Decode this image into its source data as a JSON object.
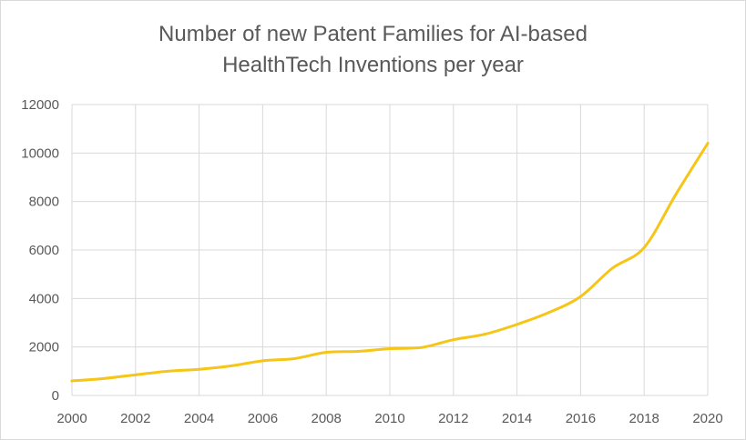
{
  "chart_data": {
    "type": "line",
    "title_lines": [
      "Number of new Patent Families for AI-based",
      "HealthTech Inventions per year"
    ],
    "xlabel": "",
    "ylabel": "",
    "xlim": [
      2000,
      2020
    ],
    "ylim": [
      0,
      12000
    ],
    "x_ticks": [
      "2000",
      "2002",
      "2004",
      "2006",
      "2008",
      "2010",
      "2012",
      "2014",
      "2016",
      "2018",
      "2020"
    ],
    "y_ticks": [
      "0",
      "2000",
      "4000",
      "6000",
      "8000",
      "10000",
      "12000"
    ],
    "grid": true,
    "legend": "none",
    "series": [
      {
        "color": "#f5c518",
        "x": [
          2000,
          2001,
          2002,
          2003,
          2004,
          2005,
          2006,
          2007,
          2008,
          2009,
          2010,
          2011,
          2012,
          2013,
          2014,
          2015,
          2016,
          2017,
          2018,
          2019,
          2020
        ],
        "y": [
          600,
          700,
          850,
          1000,
          1080,
          1220,
          1430,
          1520,
          1780,
          1820,
          1930,
          1980,
          2300,
          2530,
          2930,
          3420,
          4080,
          5250,
          6100,
          8300,
          10400
        ]
      }
    ]
  }
}
